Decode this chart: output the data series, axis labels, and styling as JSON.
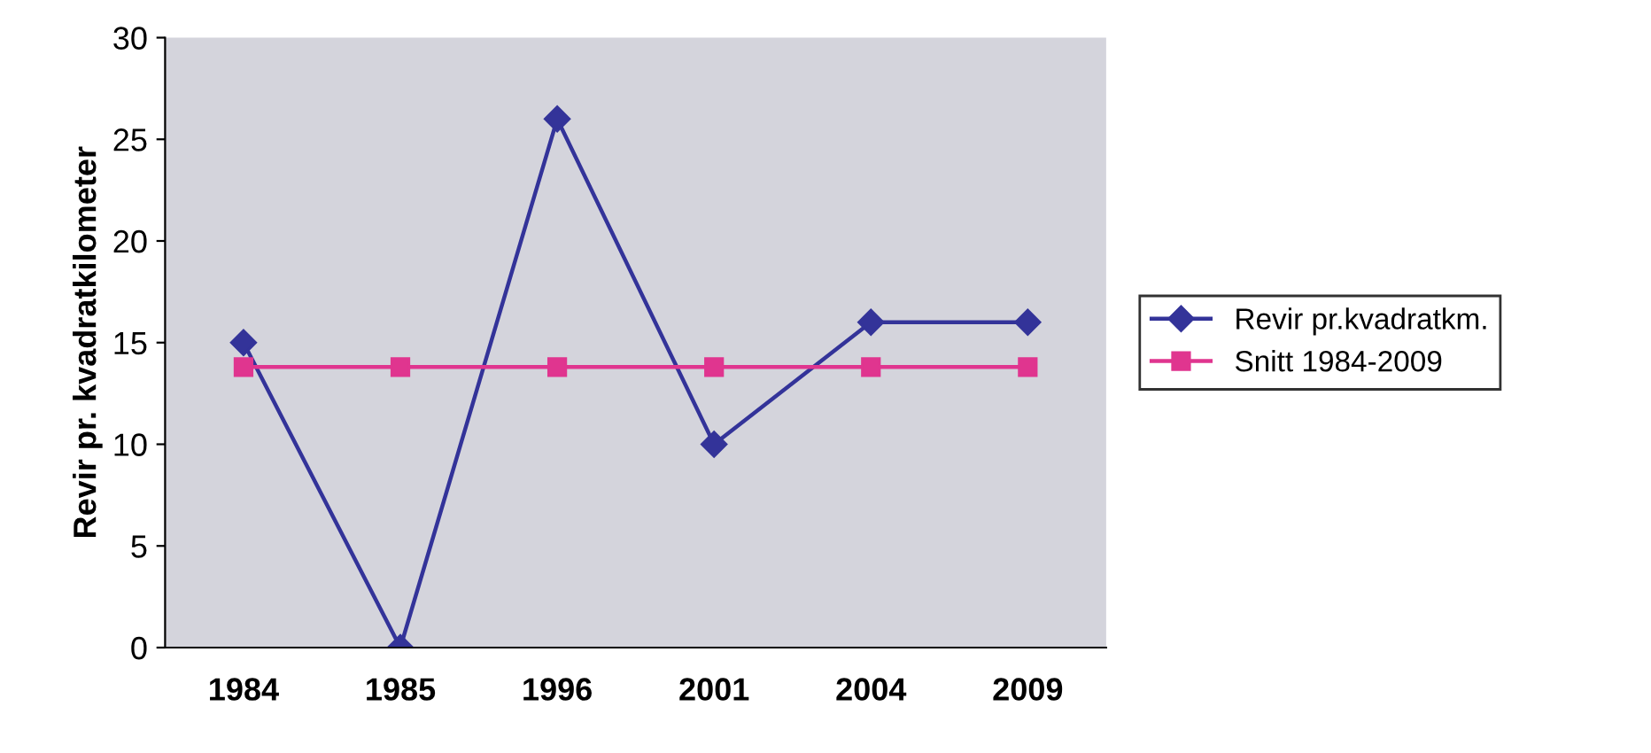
{
  "chart_data": {
    "type": "line",
    "ylabel": "Revir pr. kvadratkilometer",
    "categories": [
      "1984",
      "1985",
      "1996",
      "2001",
      "2004",
      "2009"
    ],
    "series": [
      {
        "name": "Revir pr.kvadratkm.",
        "color": "#333399",
        "marker": "diamond",
        "values": [
          15,
          0,
          26,
          10,
          16,
          16
        ]
      },
      {
        "name": "Snitt 1984-2009",
        "color": "#e0358f",
        "marker": "square",
        "values": [
          13.8,
          13.8,
          13.8,
          13.8,
          13.8,
          13.8
        ]
      }
    ],
    "ylim": [
      0,
      30
    ],
    "yticks": [
      0,
      5,
      10,
      15,
      20,
      25,
      30
    ],
    "grid": false,
    "legend": "right"
  }
}
